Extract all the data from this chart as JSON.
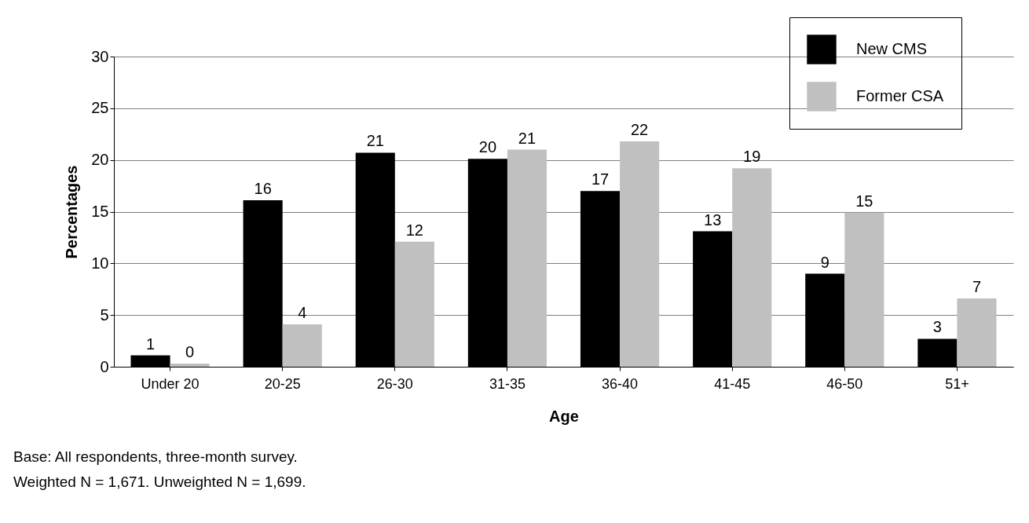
{
  "chart_data": {
    "type": "bar",
    "xlabel": "Age",
    "ylabel": "Percentages",
    "categories": [
      "Under 20",
      "20-25",
      "26-30",
      "31-35",
      "36-40",
      "41-45",
      "46-50",
      "51+"
    ],
    "series": [
      {
        "name": "New CMS",
        "color": "#000000",
        "values": [
          1.1,
          16.1,
          20.7,
          20.1,
          17.0,
          13.1,
          9.0,
          2.7
        ],
        "value_labels": [
          "1",
          "16",
          "21",
          "20",
          "17",
          "13",
          "9",
          "3"
        ]
      },
      {
        "name": "Former CSA",
        "color": "#c0c0c0",
        "values": [
          0.3,
          4.1,
          12.1,
          21.0,
          21.8,
          19.2,
          14.9,
          6.6
        ],
        "value_labels": [
          "0",
          "4",
          "12",
          "21",
          "22",
          "19",
          "15",
          "7"
        ]
      }
    ],
    "ylim": [
      0,
      30
    ],
    "yticks": [
      0,
      5,
      10,
      15,
      20,
      25,
      30
    ],
    "grid": "y",
    "legend": "top right",
    "annotations": [
      "Base: All respondents, three-month survey.",
      "Weighted N = 1,671. Unweighted N = 1,699."
    ]
  }
}
